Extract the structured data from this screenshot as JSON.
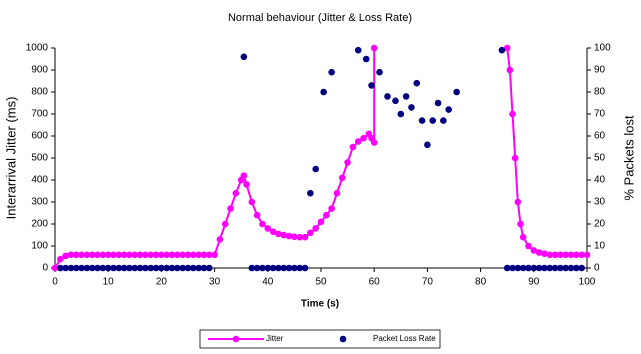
{
  "chart_data": {
    "type": "combo",
    "title": "Normal behaviour (Jitter & Loss Rate)",
    "x_label": "Time (s)",
    "y_label": "Interarrival Jitter (ms)",
    "y2_label": "% Packets lost",
    "xlim": [
      0,
      100
    ],
    "xticks": [
      0,
      10,
      20,
      30,
      40,
      50,
      60,
      70,
      80,
      90,
      100
    ],
    "ylim": [
      0,
      1000
    ],
    "yticks": [
      0,
      100,
      200,
      300,
      400,
      500,
      600,
      700,
      800,
      900,
      1000
    ],
    "y2lim": [
      0,
      100
    ],
    "y2ticks": [
      0,
      10,
      20,
      30,
      40,
      50,
      60,
      70,
      80,
      90,
      100
    ],
    "series": [
      {
        "name": "Jitter",
        "type": "line",
        "color": "#ff00ff",
        "x": [
          0,
          1,
          2,
          3,
          4,
          5,
          6,
          7,
          8,
          9,
          10,
          11,
          12,
          13,
          14,
          15,
          16,
          17,
          18,
          19,
          20,
          21,
          22,
          23,
          24,
          25,
          26,
          27,
          28,
          29,
          30,
          31,
          32,
          33,
          34,
          35,
          35.5,
          36,
          37,
          38,
          39,
          40,
          41,
          42,
          43,
          44,
          45,
          46,
          47,
          48,
          49,
          50,
          51,
          52,
          53,
          54,
          55,
          56,
          57,
          58,
          59,
          59.5,
          60,
          60,
          null,
          85,
          85.5,
          86,
          86.5,
          87,
          87.5,
          88,
          89,
          90,
          91,
          92,
          93,
          94,
          95,
          96,
          97,
          98,
          99,
          100
        ],
        "values": [
          0,
          40,
          55,
          60,
          60,
          60,
          60,
          60,
          60,
          60,
          60,
          60,
          60,
          60,
          60,
          60,
          60,
          60,
          60,
          60,
          60,
          60,
          60,
          60,
          60,
          60,
          60,
          60,
          60,
          60,
          60,
          130,
          200,
          270,
          340,
          400,
          420,
          380,
          300,
          240,
          200,
          180,
          165,
          155,
          150,
          145,
          142,
          140,
          140,
          160,
          180,
          210,
          240,
          270,
          340,
          410,
          480,
          550,
          575,
          590,
          610,
          590,
          570,
          1000,
          null,
          1000,
          900,
          700,
          500,
          300,
          200,
          140,
          100,
          80,
          70,
          65,
          60,
          60,
          60,
          60,
          60,
          60,
          60,
          60
        ]
      },
      {
        "name": "Packet Loss Rate",
        "type": "scatter",
        "axis": "y2",
        "color": "#000080",
        "x": [
          1,
          2,
          3,
          4,
          5,
          6,
          7,
          8,
          9,
          10,
          11,
          12,
          13,
          14,
          15,
          16,
          17,
          18,
          19,
          20,
          21,
          22,
          23,
          24,
          25,
          26,
          27,
          28,
          29,
          35.5,
          37,
          38,
          39,
          40,
          41,
          42,
          43,
          44,
          45,
          46,
          47,
          48,
          49,
          50.5,
          52,
          57,
          58.5,
          59.5,
          61,
          62.5,
          64,
          65,
          66,
          67,
          68,
          69,
          70,
          71,
          72,
          73,
          74,
          75.5,
          84,
          85,
          86,
          87,
          88,
          89,
          90,
          91,
          92,
          93,
          94,
          95,
          96,
          97,
          98,
          99
        ],
        "values": [
          0,
          0,
          0,
          0,
          0,
          0,
          0,
          0,
          0,
          0,
          0,
          0,
          0,
          0,
          0,
          0,
          0,
          0,
          0,
          0,
          0,
          0,
          0,
          0,
          0,
          0,
          0,
          0,
          0,
          96,
          0,
          0,
          0,
          0,
          0,
          0,
          0,
          0,
          0,
          0,
          0,
          34,
          45,
          80,
          89,
          99,
          95,
          83,
          89,
          78,
          76,
          70,
          78,
          73,
          84,
          67,
          56,
          67,
          75,
          67,
          72,
          80,
          99,
          0,
          0,
          0,
          0,
          0,
          0,
          0,
          0,
          0,
          0,
          0,
          0,
          0,
          0,
          0
        ]
      }
    ]
  }
}
